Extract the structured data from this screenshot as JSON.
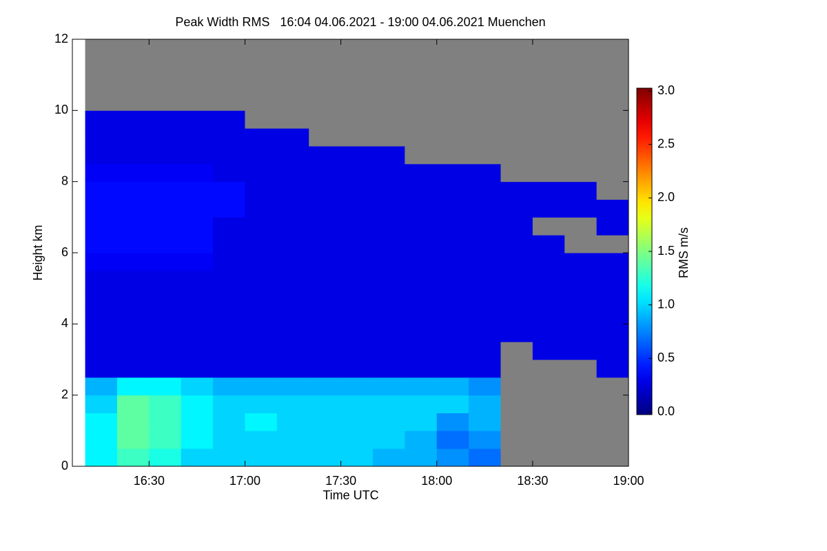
{
  "chart_data": {
    "type": "heatmap",
    "title": "Peak Width RMS   16:04 04.06.2021 - 19:00 04.06.2021 Muenchen",
    "x_label": "Time UTC",
    "y_label": "Height km",
    "colorbar_label": "RMS m/s",
    "xlim": [
      "16:06",
      "19:00"
    ],
    "xticks": [
      "16:30",
      "17:00",
      "17:30",
      "18:00",
      "18:30",
      "19:00"
    ],
    "ylim": [
      0,
      12
    ],
    "yticks": [
      0,
      2,
      4,
      6,
      8,
      10,
      12
    ],
    "colormap": "jet",
    "nodata_color": "#808080",
    "clim": [
      0,
      3
    ],
    "cticks": [
      {
        "value": 0,
        "label": "0.0"
      },
      {
        "value": 0.5,
        "label": "0.5"
      },
      {
        "value": 1,
        "label": "1.0"
      },
      {
        "value": 1.5,
        "label": "1.5"
      },
      {
        "value": 2,
        "label": "2.0"
      },
      {
        "value": 2.5,
        "label": "2.5"
      },
      {
        "value": 3,
        "label": "3.0"
      }
    ],
    "x_bins": [
      "16:10",
      "16:20",
      "16:30",
      "16:40",
      "16:50",
      "17:00",
      "17:10",
      "17:20",
      "17:30",
      "17:40",
      "17:50",
      "18:00",
      "18:10",
      "18:20",
      "18:30",
      "18:40",
      "18:50",
      "19:00"
    ],
    "y_bins": [
      0,
      0.5,
      1,
      1.5,
      2,
      2.5,
      3,
      3.5,
      4,
      4.5,
      5,
      5.5,
      6,
      6.5,
      7,
      7.5,
      8,
      8.5,
      9,
      9.5,
      10
    ],
    "z": [
      [
        1.1,
        1.3,
        1.2,
        1.0,
        1.0,
        1.0,
        1.0,
        1.0,
        1.0,
        0.9,
        0.9,
        0.8,
        0.7,
        null,
        null,
        null,
        null
      ],
      [
        1.1,
        1.4,
        1.3,
        1.1,
        1.0,
        1.0,
        1.0,
        1.0,
        1.0,
        1.0,
        0.9,
        0.7,
        0.8,
        null,
        null,
        null,
        null
      ],
      [
        1.1,
        1.4,
        1.3,
        1.1,
        1.0,
        1.1,
        1.0,
        1.0,
        1.0,
        1.0,
        1.0,
        0.8,
        0.9,
        null,
        null,
        null,
        null
      ],
      [
        1.0,
        1.4,
        1.3,
        1.1,
        1.0,
        1.0,
        1.0,
        1.0,
        1.0,
        1.0,
        1.0,
        1.0,
        0.9,
        null,
        null,
        null,
        null
      ],
      [
        0.9,
        1.1,
        1.1,
        1.0,
        0.9,
        0.9,
        0.9,
        0.9,
        0.9,
        0.9,
        0.9,
        0.9,
        0.8,
        null,
        null,
        null,
        null
      ],
      [
        0.3,
        0.3,
        0.3,
        0.3,
        0.3,
        0.3,
        0.3,
        0.3,
        0.3,
        0.3,
        0.3,
        0.3,
        0.3,
        null,
        null,
        null,
        0.3
      ],
      [
        0.3,
        0.3,
        0.3,
        0.3,
        0.3,
        0.3,
        0.3,
        0.3,
        0.3,
        0.3,
        0.3,
        0.3,
        0.3,
        null,
        0.3,
        0.3,
        0.3
      ],
      [
        0.3,
        0.3,
        0.3,
        0.3,
        0.3,
        0.3,
        0.3,
        0.3,
        0.3,
        0.3,
        0.3,
        0.3,
        0.3,
        0.3,
        0.3,
        0.3,
        0.3
      ],
      [
        0.3,
        0.3,
        0.3,
        0.3,
        0.3,
        0.3,
        0.3,
        0.3,
        0.3,
        0.3,
        0.3,
        0.3,
        0.3,
        0.3,
        0.3,
        0.3,
        0.3
      ],
      [
        0.3,
        0.3,
        0.3,
        0.3,
        0.3,
        0.3,
        0.3,
        0.3,
        0.3,
        0.3,
        0.3,
        0.3,
        0.3,
        0.3,
        0.3,
        0.3,
        0.3
      ],
      [
        0.3,
        0.3,
        0.3,
        0.3,
        0.3,
        0.3,
        0.3,
        0.3,
        0.3,
        0.3,
        0.3,
        0.3,
        0.3,
        0.3,
        0.3,
        0.3,
        0.3
      ],
      [
        0.35,
        0.35,
        0.35,
        0.35,
        0.3,
        0.3,
        0.3,
        0.3,
        0.3,
        0.3,
        0.3,
        0.3,
        0.3,
        0.3,
        0.3,
        0.3,
        0.3
      ],
      [
        0.4,
        0.4,
        0.4,
        0.4,
        0.3,
        0.3,
        0.3,
        0.3,
        0.3,
        0.3,
        0.3,
        0.3,
        0.3,
        0.3,
        0.3,
        null,
        null
      ],
      [
        0.4,
        0.4,
        0.4,
        0.4,
        0.3,
        0.3,
        0.3,
        0.3,
        0.3,
        0.3,
        0.3,
        0.3,
        0.3,
        0.3,
        null,
        null,
        0.3
      ],
      [
        0.4,
        0.4,
        0.4,
        0.4,
        0.4,
        0.3,
        0.3,
        0.3,
        0.3,
        0.3,
        0.3,
        0.3,
        0.3,
        0.3,
        0.3,
        0.3,
        0.3
      ],
      [
        0.4,
        0.4,
        0.4,
        0.4,
        0.4,
        0.3,
        0.3,
        0.3,
        0.3,
        0.3,
        0.3,
        0.3,
        0.3,
        0.3,
        0.3,
        0.3,
        null
      ],
      [
        0.35,
        0.35,
        0.35,
        0.35,
        0.3,
        0.3,
        0.3,
        0.3,
        0.3,
        0.3,
        0.3,
        0.3,
        0.3,
        null,
        null,
        null,
        null
      ],
      [
        0.3,
        0.3,
        0.3,
        0.3,
        0.3,
        0.3,
        0.3,
        0.3,
        0.3,
        0.3,
        null,
        null,
        null,
        null,
        null,
        null,
        null
      ],
      [
        0.3,
        0.3,
        0.3,
        0.3,
        0.3,
        0.3,
        0.3,
        null,
        null,
        null,
        null,
        null,
        null,
        null,
        null,
        null,
        null
      ],
      [
        0.3,
        0.3,
        0.3,
        0.3,
        0.3,
        null,
        null,
        null,
        null,
        null,
        null,
        null,
        null,
        null,
        null,
        null,
        null
      ]
    ]
  }
}
